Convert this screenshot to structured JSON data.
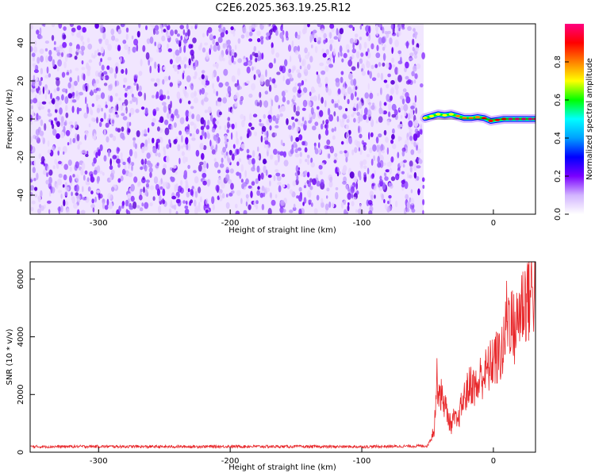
{
  "title": "C2E6.2025.363.19.25.R12",
  "chart_data": [
    {
      "type": "heatmap",
      "name": "spectrogram",
      "xlabel": "Height of straight line (km)",
      "ylabel": "Frequency (Hz)",
      "xlim": [
        -352,
        32
      ],
      "ylim": [
        -50,
        50
      ],
      "xticks": [
        -300,
        -200,
        -100,
        0
      ],
      "yticks": [
        -40,
        -20,
        0,
        20,
        40
      ],
      "noise_region_x": [
        -352,
        -53
      ],
      "signal_trace": {
        "x": [
          -52,
          -47,
          -42,
          -37,
          -32,
          -27,
          -22,
          -17,
          -12,
          -7,
          -2,
          3,
          8,
          13,
          18,
          23,
          28,
          32
        ],
        "frequency_hz": [
          0.5,
          1.5,
          2.5,
          2,
          2.5,
          1.5,
          0.5,
          0.5,
          1,
          0.5,
          -1,
          -0.5,
          0,
          0,
          0,
          0,
          0,
          0
        ]
      },
      "colorbar": {
        "label": "Normalized spectral amplitude",
        "range": [
          0.0,
          1.0
        ],
        "ticks": [
          "0.0",
          "0.2",
          "0.4",
          "0.6",
          "0.8"
        ],
        "stops": [
          "#ffffff",
          "#d2b4ff",
          "#7a00ff",
          "#0000ff",
          "#00a0ff",
          "#00ffff",
          "#00ff00",
          "#ffff00",
          "#ff8000",
          "#ff0000",
          "#ff0080"
        ]
      }
    },
    {
      "type": "line",
      "name": "snr",
      "xlabel": "Height of straight line (km)",
      "ylabel": "SNR (10 * v/v)",
      "xlim": [
        -352,
        32
      ],
      "ylim": [
        0,
        6600
      ],
      "xticks": [
        -300,
        -200,
        -100,
        0
      ],
      "yticks": [
        0,
        2000,
        4000,
        6000
      ],
      "color": "#e8282b",
      "series": [
        {
          "name": "SNR",
          "x": [
            -352,
            -300,
            -250,
            -200,
            -150,
            -100,
            -60,
            -50,
            -45,
            -43,
            -40,
            -37,
            -35,
            -32,
            -30,
            -27,
            -25,
            -22,
            -20,
            -17,
            -15,
            -12,
            -10,
            -7,
            -5,
            -2,
            0,
            3,
            5,
            8,
            10,
            13,
            15,
            18,
            20,
            23,
            25,
            28,
            32
          ],
          "values": [
            190,
            200,
            190,
            200,
            195,
            190,
            210,
            220,
            800,
            2500,
            2000,
            1700,
            1300,
            900,
            1200,
            1000,
            1500,
            1900,
            2100,
            2400,
            2300,
            2200,
            2600,
            2700,
            2800,
            3000,
            3300,
            3200,
            3400,
            3600,
            4700,
            4800,
            4200,
            4400,
            5000,
            5200,
            5400,
            5500,
            5800
          ]
        }
      ]
    }
  ]
}
